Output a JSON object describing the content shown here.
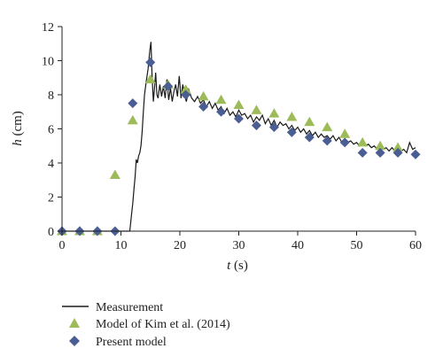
{
  "chart_data": {
    "type": "scatter",
    "xlabel": {
      "var": "t",
      "unit": " (s)"
    },
    "ylabel": {
      "var": "h",
      "unit": " (cm)"
    },
    "xlim": [
      0,
      60
    ],
    "ylim": [
      0,
      12
    ],
    "xticks": [
      0,
      10,
      20,
      30,
      40,
      50,
      60
    ],
    "yticks": [
      0,
      2,
      4,
      6,
      8,
      10,
      12
    ],
    "grid": false,
    "legend_position": "bottom-left",
    "series": [
      {
        "name": "Measurement",
        "kind": "line",
        "color": "#1a1a1a",
        "x": [
          0,
          11.5,
          11.8,
          12.0,
          12.2,
          12.4,
          12.6,
          12.8,
          13.0,
          13.2,
          13.4,
          13.6,
          13.8,
          14.0,
          14.3,
          14.6,
          14.9,
          15.1,
          15.3,
          15.5,
          15.7,
          15.9,
          16.1,
          16.3,
          16.6,
          16.9,
          17.2,
          17.5,
          17.8,
          18.1,
          18.4,
          18.7,
          19.0,
          19.3,
          19.6,
          19.9,
          20.2,
          20.5,
          20.8,
          21.1,
          21.5,
          22.0,
          22.5,
          23.0,
          23.5,
          24.0,
          24.5,
          25.0,
          25.5,
          26.0,
          26.5,
          27.0,
          27.5,
          28.0,
          28.5,
          29.0,
          29.5,
          30.0,
          30.5,
          31.0,
          31.5,
          32.0,
          32.5,
          33.0,
          33.5,
          34.0,
          34.5,
          35.0,
          35.5,
          36.0,
          36.5,
          37.0,
          37.5,
          38.0,
          38.5,
          39.0,
          39.5,
          40.0,
          40.5,
          41.0,
          41.5,
          42.0,
          42.5,
          43.0,
          43.5,
          44.0,
          44.5,
          45.0,
          45.5,
          46.0,
          46.5,
          47.0,
          47.5,
          48.0,
          48.5,
          49.0,
          49.5,
          50.0,
          50.5,
          51.0,
          51.5,
          52.0,
          52.5,
          53.0,
          53.5,
          54.0,
          54.5,
          55.0,
          55.5,
          56.0,
          56.5,
          57.0,
          57.5,
          58.0,
          58.5,
          59.0,
          59.5,
          60.0
        ],
        "y": [
          0,
          0,
          1.0,
          1.6,
          2.4,
          3.2,
          4.2,
          4.0,
          4.4,
          4.6,
          5.0,
          5.8,
          7.0,
          8.0,
          8.8,
          9.5,
          10.6,
          11.1,
          9.0,
          7.6,
          8.4,
          9.3,
          8.0,
          7.8,
          8.6,
          7.9,
          8.5,
          7.8,
          8.9,
          7.7,
          8.4,
          7.6,
          8.2,
          8.6,
          7.9,
          9.1,
          7.8,
          8.6,
          8.0,
          7.6,
          8.3,
          7.8,
          7.6,
          7.9,
          7.5,
          7.7,
          7.3,
          7.6,
          7.2,
          7.5,
          7.1,
          7.3,
          6.9,
          7.2,
          6.8,
          7.0,
          6.7,
          7.1,
          6.8,
          6.9,
          6.6,
          6.8,
          6.4,
          6.7,
          6.5,
          6.8,
          6.3,
          6.6,
          6.2,
          6.5,
          6.1,
          6.4,
          6.2,
          6.3,
          6.0,
          6.2,
          5.9,
          6.1,
          5.8,
          6.0,
          5.7,
          5.9,
          5.6,
          5.8,
          5.5,
          5.7,
          5.5,
          5.6,
          5.4,
          5.6,
          5.3,
          5.5,
          5.2,
          5.4,
          5.2,
          5.3,
          5.1,
          5.2,
          5.0,
          5.2,
          5.0,
          5.1,
          4.9,
          5.0,
          4.8,
          5.0,
          4.8,
          4.9,
          4.7,
          4.9,
          4.7,
          4.8,
          4.7,
          4.8,
          4.6,
          5.2,
          4.8,
          4.9
        ]
      },
      {
        "name": "Model of Kim et al. (2014)",
        "kind": "triangle",
        "color": "#9dbb59",
        "x": [
          0,
          3,
          6,
          9,
          12,
          15,
          18,
          21,
          24,
          27,
          30,
          33,
          36,
          39,
          42,
          45,
          48,
          51,
          54,
          57
        ],
        "y": [
          0,
          0,
          0,
          3.3,
          6.5,
          8.9,
          8.6,
          8.3,
          7.9,
          7.7,
          7.4,
          7.1,
          6.9,
          6.7,
          6.4,
          6.1,
          5.7,
          5.2,
          5.0,
          4.9
        ]
      },
      {
        "name": "Present model",
        "kind": "diamond",
        "color": "#4b5e94",
        "x": [
          0,
          3,
          6,
          9,
          12,
          15,
          18,
          21,
          24,
          27,
          30,
          33,
          36,
          39,
          42,
          45,
          48,
          51,
          54,
          57,
          60
        ],
        "y": [
          0,
          0,
          0,
          0,
          7.5,
          9.9,
          8.5,
          8.0,
          7.3,
          7.0,
          6.6,
          6.2,
          6.1,
          5.8,
          5.5,
          5.3,
          5.2,
          4.6,
          4.6,
          4.6,
          4.5
        ]
      }
    ]
  }
}
